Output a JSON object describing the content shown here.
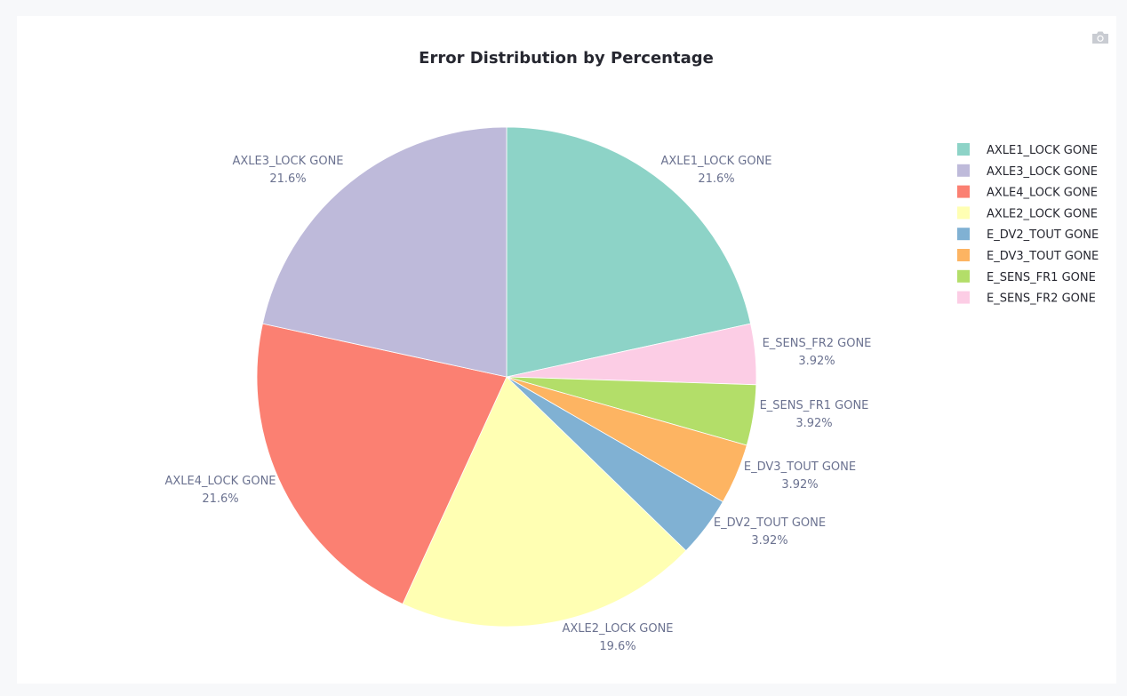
{
  "chart_data": {
    "type": "pie",
    "title": "Error Distribution by Percentage",
    "slices": [
      {
        "label": "AXLE1_LOCK GONE",
        "value": 21.6,
        "text": "21.6%",
        "color": "#8dd3c7"
      },
      {
        "label": "E_SENS_FR2 GONE",
        "value": 3.92,
        "text": "3.92%",
        "color": "#fccde5"
      },
      {
        "label": "E_SENS_FR1 GONE",
        "value": 3.92,
        "text": "3.92%",
        "color": "#b3de69"
      },
      {
        "label": "E_DV3_TOUT GONE",
        "value": 3.92,
        "text": "3.92%",
        "color": "#fdb462"
      },
      {
        "label": "E_DV2_TOUT GONE",
        "value": 3.92,
        "text": "3.92%",
        "color": "#80b1d3"
      },
      {
        "label": "AXLE2_LOCK GONE",
        "value": 19.6,
        "text": "19.6%",
        "color": "#ffffb3"
      },
      {
        "label": "AXLE4_LOCK GONE",
        "value": 21.6,
        "text": "21.6%",
        "color": "#fb8072"
      },
      {
        "label": "AXLE3_LOCK GONE",
        "value": 21.6,
        "text": "21.6%",
        "color": "#bebada"
      }
    ],
    "legend_order": [
      "AXLE1_LOCK GONE",
      "AXLE3_LOCK GONE",
      "AXLE4_LOCK GONE",
      "AXLE2_LOCK GONE",
      "E_DV2_TOUT GONE",
      "E_DV3_TOUT GONE",
      "E_SENS_FR1 GONE",
      "E_SENS_FR2 GONE"
    ],
    "legend_position": "right",
    "direction": "clockwise"
  },
  "toolbar": {
    "icon": "camera-icon"
  }
}
